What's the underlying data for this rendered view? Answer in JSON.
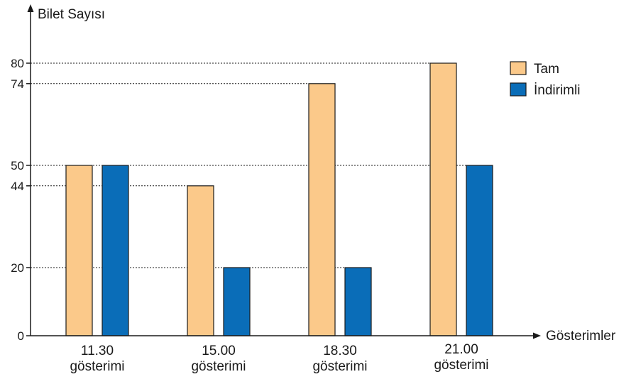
{
  "chart_data": {
    "type": "bar",
    "title": "",
    "ylabel": "Bilet Sayısı",
    "xlabel": "Gösterimler",
    "categories": [
      [
        "11.30",
        "gösterimi"
      ],
      [
        "15.00",
        "gösterimi"
      ],
      [
        "18.30",
        "gösterimi"
      ],
      [
        "21.00",
        "gösterimi"
      ]
    ],
    "series": [
      {
        "name": "Tam",
        "values": [
          50,
          44,
          74,
          80
        ],
        "color": "#FBC98A"
      },
      {
        "name": "İndirimli",
        "values": [
          50,
          20,
          20,
          50
        ],
        "color": "#0A6DB8"
      }
    ],
    "yticks": [
      0,
      20,
      44,
      50,
      74,
      80
    ],
    "ylim": [
      0,
      80
    ],
    "grid": "dotted reference lines at tick values",
    "legend": "top-right"
  }
}
